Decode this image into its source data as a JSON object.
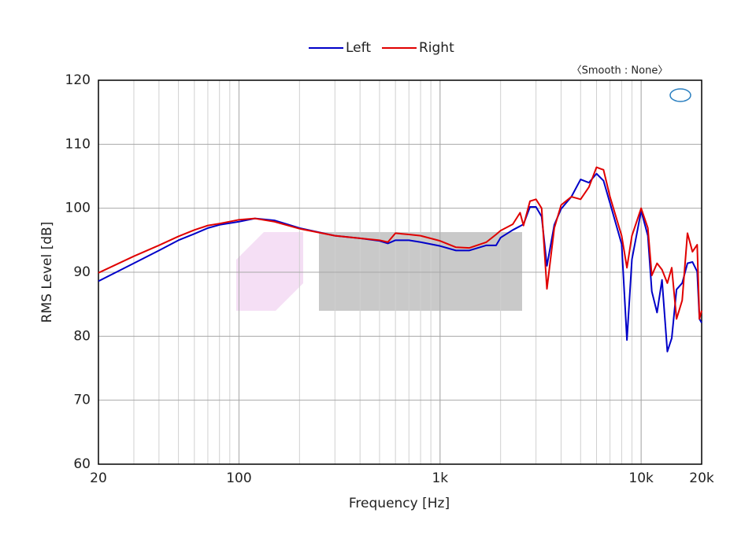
{
  "chart_data": {
    "type": "line",
    "annotation": "〈Smooth : None〉",
    "x_label": "Frequency [Hz]",
    "y_label": "RMS Level [dB]",
    "log_x": true,
    "grid": true,
    "xlim": [
      20,
      20000
    ],
    "ylim": [
      60,
      120
    ],
    "xticks": [
      20,
      100,
      {
        "value": 1000,
        "label": "1k"
      },
      {
        "value": 10000,
        "label": "10k"
      },
      {
        "value": 20000,
        "label": "20k"
      }
    ],
    "yticks": [
      60,
      70,
      80,
      90,
      100,
      110,
      120
    ],
    "legend": "top",
    "x": [
      20,
      30,
      40,
      50,
      60,
      70,
      80,
      100,
      120,
      150,
      200,
      300,
      400,
      500,
      550,
      600,
      700,
      800,
      1000,
      1200,
      1400,
      1700,
      1900,
      2000,
      2300,
      2500,
      2600,
      2800,
      3000,
      3200,
      3400,
      3700,
      4000,
      4500,
      5000,
      5500,
      6000,
      6500,
      7000,
      8000,
      8500,
      9000,
      10000,
      10800,
      11300,
      12000,
      12700,
      13500,
      14200,
      15000,
      16000,
      17000,
      18000,
      19000,
      19500,
      20000
    ],
    "series": [
      {
        "name": "Left",
        "color": "#0000c8",
        "values": [
          88.6,
          91.4,
          93.4,
          95.0,
          96.0,
          96.9,
          97.4,
          97.9,
          98.4,
          98.1,
          96.9,
          95.7,
          95.3,
          94.9,
          94.5,
          95.0,
          95.0,
          94.7,
          94.1,
          93.4,
          93.4,
          94.2,
          94.2,
          95.4,
          96.6,
          97.2,
          97.5,
          100.2,
          100.2,
          98.7,
          91.0,
          97.4,
          99.9,
          101.8,
          104.5,
          104.0,
          105.4,
          104.3,
          100.8,
          94.4,
          79.4,
          92.0,
          99.6,
          95.7,
          87.0,
          83.7,
          88.8,
          77.6,
          79.7,
          87.3,
          88.3,
          91.4,
          91.6,
          90.1,
          82.7,
          82.1
        ]
      },
      {
        "name": "Right",
        "color": "#e00000",
        "values": [
          89.9,
          92.5,
          94.2,
          95.6,
          96.6,
          97.3,
          97.6,
          98.2,
          98.4,
          97.9,
          96.8,
          95.7,
          95.3,
          95.0,
          94.7,
          96.1,
          95.9,
          95.7,
          94.9,
          93.9,
          93.8,
          94.7,
          95.9,
          96.5,
          97.5,
          99.3,
          97.3,
          101.1,
          101.4,
          100.0,
          87.4,
          96.9,
          100.5,
          101.8,
          101.4,
          103.3,
          106.4,
          106.0,
          101.8,
          95.7,
          90.7,
          95.7,
          100.0,
          96.9,
          89.5,
          91.4,
          90.4,
          88.3,
          90.7,
          82.7,
          85.6,
          96.1,
          93.2,
          94.3,
          82.7,
          84.0
        ]
      }
    ]
  }
}
